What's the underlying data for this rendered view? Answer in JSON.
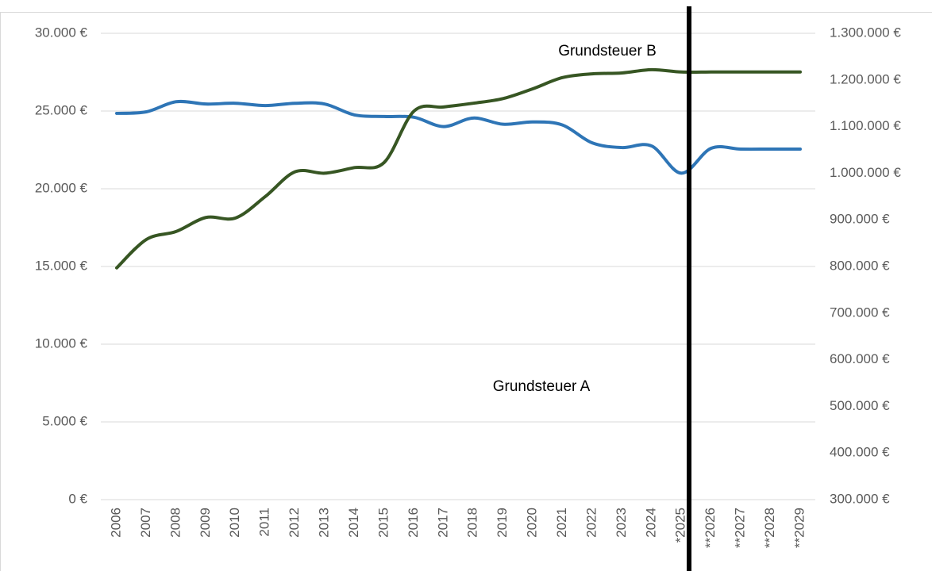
{
  "chart_data": {
    "type": "line",
    "categories": [
      "2006",
      "2007",
      "2008",
      "2009",
      "2010",
      "2011",
      "2012",
      "2013",
      "2014",
      "2015",
      "2016",
      "2017",
      "2018",
      "2019",
      "2020",
      "2021",
      "2022",
      "2023",
      "2024",
      "*2025",
      "**2026",
      "**2027",
      "**2028",
      "**2029"
    ],
    "series": [
      {
        "name": "Grundsteuer A",
        "color": "#2e75b6",
        "axis": "y",
        "values": [
          24850,
          24950,
          25600,
          25450,
          25500,
          25350,
          25500,
          25450,
          24750,
          24650,
          24600,
          24000,
          24550,
          24150,
          24300,
          24100,
          22950,
          22650,
          22750,
          21000,
          22600,
          22550,
          22550,
          22550
        ]
      },
      {
        "name": "Grundsteuer B",
        "color": "#375623",
        "axis": "y2",
        "values": [
          797000,
          858000,
          875000,
          905000,
          904000,
          950000,
          1003000,
          1000000,
          1012000,
          1023000,
          1133000,
          1142000,
          1150000,
          1160000,
          1181000,
          1205000,
          1213000,
          1215000,
          1222000,
          1217000,
          1217000,
          1217000,
          1217000,
          1217000
        ]
      }
    ],
    "ylim": [
      0,
      30000
    ],
    "yticks": [
      {
        "value": 0,
        "label": "0 €"
      },
      {
        "value": 5000,
        "label": "5.000 €"
      },
      {
        "value": 10000,
        "label": "10.000 €"
      },
      {
        "value": 15000,
        "label": "15.000 €"
      },
      {
        "value": 20000,
        "label": "20.000 €"
      },
      {
        "value": 25000,
        "label": "25.000 €"
      },
      {
        "value": 30000,
        "label": "30.000 €"
      }
    ],
    "y2lim": [
      300000,
      1300000
    ],
    "y2ticks": [
      {
        "value": 300000,
        "label": "300.000 €"
      },
      {
        "value": 400000,
        "label": "400.000 €"
      },
      {
        "value": 500000,
        "label": "500.000 €"
      },
      {
        "value": 600000,
        "label": "600.000 €"
      },
      {
        "value": 700000,
        "label": "700.000 €"
      },
      {
        "value": 800000,
        "label": "800.000 €"
      },
      {
        "value": 900000,
        "label": "900.000 €"
      },
      {
        "value": 1000000,
        "label": "1.000.000 €"
      },
      {
        "value": 1100000,
        "label": "1.100.000 €"
      },
      {
        "value": 1200000,
        "label": "1.200.000 €"
      },
      {
        "value": 1300000,
        "label": "1.300.000 €"
      }
    ],
    "grid": true
  }
}
